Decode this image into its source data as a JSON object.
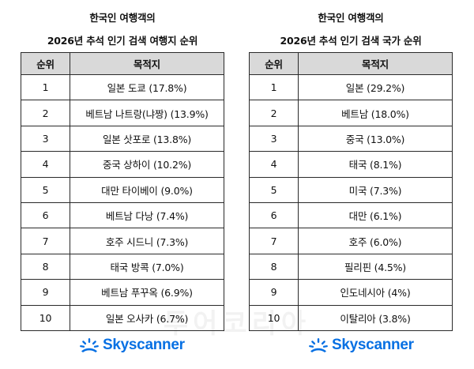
{
  "left": {
    "title_line1": "한국인 여행객의",
    "title_line2": "2026년 추석 인기 검색 여행지 순위",
    "headers": [
      "순위",
      "목적지"
    ],
    "rows": [
      [
        "1",
        "일본 도쿄 (17.8%)"
      ],
      [
        "2",
        "베트남 나트랑(냐짱) (13.9%)"
      ],
      [
        "3",
        "일본 삿포로 (13.8%)"
      ],
      [
        "4",
        "중국 상하이 (10.2%)"
      ],
      [
        "5",
        "대만 타이베이 (9.0%)"
      ],
      [
        "6",
        "베트남 다낭 (7.4%)"
      ],
      [
        "7",
        "호주 시드니 (7.3%)"
      ],
      [
        "8",
        "태국 방콕 (7.0%)"
      ],
      [
        "9",
        "베트남 푸꾸옥 (6.9%)"
      ],
      [
        "10",
        "일본 오사카 (6.7%)"
      ]
    ]
  },
  "right": {
    "title_line1": "한국인 여행객의",
    "title_line2": "2026년 추석 인기 검색 국가 순위",
    "headers": [
      "순위",
      "목적지"
    ],
    "rows": [
      [
        "1",
        "일본 (29.2%)"
      ],
      [
        "2",
        "베트남 (18.0%)"
      ],
      [
        "3",
        "중국 (13.0%)"
      ],
      [
        "4",
        "태국 (8.1%)"
      ],
      [
        "5",
        "미국 (7.3%)"
      ],
      [
        "6",
        "대만 (6.1%)"
      ],
      [
        "7",
        "호주 (6.0%)"
      ],
      [
        "8",
        "필리핀 (4.5%)"
      ],
      [
        "9",
        "인도네시아 (4%)"
      ],
      [
        "10",
        "이탈리아 (3.8%)"
      ]
    ]
  },
  "brand": {
    "name": "Skyscanner",
    "icon": "skyscanner-sun-icon",
    "color": "#0770e3"
  },
  "watermark": "투어코리아"
}
